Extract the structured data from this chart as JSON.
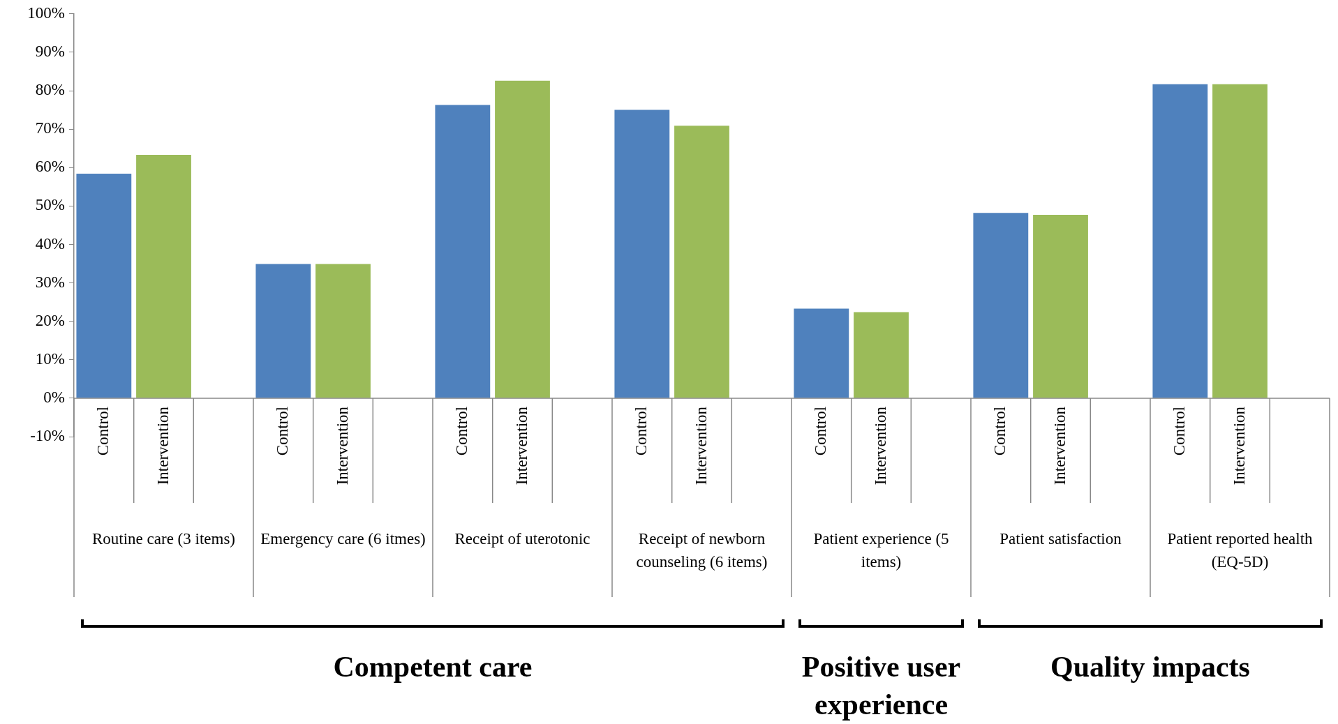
{
  "chart_data": {
    "type": "bar",
    "categories": [
      "Control",
      "Intervention",
      null,
      "Control",
      "Intervention",
      null,
      "Control",
      "Intervention",
      null,
      "Control",
      "Intervention",
      null,
      "Control",
      "Intervention",
      null,
      "Control",
      "Intervention",
      null,
      "Control",
      "Intervention",
      null
    ],
    "values": [
      58.4,
      63.3,
      null,
      34.9,
      34.9,
      null,
      76.3,
      82.6,
      null,
      75.0,
      70.9,
      null,
      23.3,
      22.4,
      null,
      48.2,
      47.7,
      null,
      81.7,
      81.7,
      null
    ],
    "colors": [
      "#4f81bd",
      "#9bbb59",
      null,
      "#4f81bd",
      "#9bbb59",
      null,
      "#4f81bd",
      "#9bbb59",
      null,
      "#4f81bd",
      "#9bbb59",
      null,
      "#4f81bd",
      "#9bbb59",
      null,
      "#4f81bd",
      "#9bbb59",
      null,
      "#4f81bd",
      "#9bbb59",
      null
    ],
    "ylim": [
      -10,
      100
    ],
    "yticks": [
      {
        "value": -10,
        "label": "-10%"
      },
      {
        "value": 0,
        "label": "0%"
      },
      {
        "value": 10,
        "label": "10%"
      },
      {
        "value": 20,
        "label": "20%"
      },
      {
        "value": 30,
        "label": "30%"
      },
      {
        "value": 40,
        "label": "40%"
      },
      {
        "value": 50,
        "label": "50%"
      },
      {
        "value": 60,
        "label": "60%"
      },
      {
        "value": 70,
        "label": "70%"
      },
      {
        "value": 80,
        "label": "80%"
      },
      {
        "value": 90,
        "label": "90%"
      },
      {
        "value": 100,
        "label": "100%"
      }
    ],
    "annotations": [
      "Routine care (3 items)",
      "Emergency care (6 itmes)",
      "Receipt of uterotonic",
      "Receipt of newborn counseling (6 items)",
      "Patient experience (5 items)",
      "Patient satisfaction",
      "Patient reported health (EQ-5D)",
      "Competent care",
      "Positive user experience",
      "Quality impacts"
    ]
  }
}
